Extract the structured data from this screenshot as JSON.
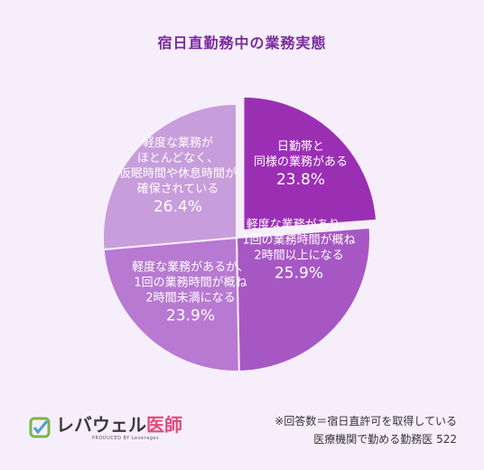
{
  "title": "宿日直勤務中の業務実態",
  "chart_data": {
    "type": "pie",
    "title": "宿日直勤務中の業務実態",
    "slices": [
      {
        "label": [
          "日勤帯と",
          "同様の業務がある"
        ],
        "value": 23.8,
        "display": "23.8%",
        "color": "#9b2fb4",
        "exploded": true
      },
      {
        "label": [
          "軽度な業務があり、",
          "1回の業務時間が概ね",
          "2時間以上になる"
        ],
        "value": 25.9,
        "display": "25.9%",
        "color": "#a757c4",
        "exploded": false
      },
      {
        "label": [
          "軽度な業務があるが、",
          "1回の業務時間が概ね",
          "2時間未満になる"
        ],
        "value": 23.9,
        "display": "23.9%",
        "color": "#b779d1",
        "exploded": false
      },
      {
        "label": [
          "軽度な業務が",
          "ほとんどなく、",
          "仮眠時間や休息時間が",
          "確保されている"
        ],
        "value": 26.4,
        "display": "26.4%",
        "color": "#c79ddb",
        "exploded": false
      }
    ]
  },
  "logo": {
    "main": "レバウェル",
    "accent": "医師",
    "sub": "PRODUCED BY Leverages"
  },
  "footnote": {
    "line1": "※回答数＝宿日直許可を取得している",
    "line2": "医療機関で勤める勤務医 522"
  }
}
